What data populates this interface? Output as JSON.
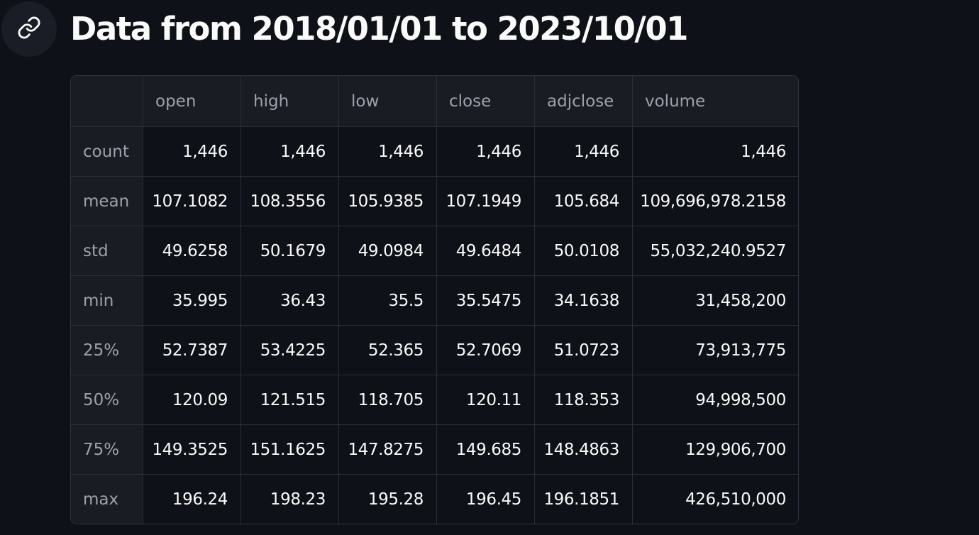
{
  "heading": {
    "title": "Data from 2018/01/01 to 2023/10/01",
    "anchor_icon": "link-icon"
  },
  "table": {
    "corner": "",
    "columns": [
      "open",
      "high",
      "low",
      "close",
      "adjclose",
      "volume"
    ],
    "rows": [
      {
        "label": "count",
        "cells": [
          "1,446",
          "1,446",
          "1,446",
          "1,446",
          "1,446",
          "1,446"
        ]
      },
      {
        "label": "mean",
        "cells": [
          "107.1082",
          "108.3556",
          "105.9385",
          "107.1949",
          "105.684",
          "109,696,978.2158"
        ]
      },
      {
        "label": "std",
        "cells": [
          "49.6258",
          "50.1679",
          "49.0984",
          "49.6484",
          "50.0108",
          "55,032,240.9527"
        ]
      },
      {
        "label": "min",
        "cells": [
          "35.995",
          "36.43",
          "35.5",
          "35.5475",
          "34.1638",
          "31,458,200"
        ]
      },
      {
        "label": "25%",
        "cells": [
          "52.7387",
          "53.4225",
          "52.365",
          "52.7069",
          "51.0723",
          "73,913,775"
        ]
      },
      {
        "label": "50%",
        "cells": [
          "120.09",
          "121.515",
          "118.705",
          "120.11",
          "118.353",
          "94,998,500"
        ]
      },
      {
        "label": "75%",
        "cells": [
          "149.3525",
          "151.1625",
          "147.8275",
          "149.685",
          "148.4863",
          "129,906,700"
        ]
      },
      {
        "label": "max",
        "cells": [
          "196.24",
          "198.23",
          "195.28",
          "196.45",
          "196.1851",
          "426,510,000"
        ]
      }
    ]
  }
}
